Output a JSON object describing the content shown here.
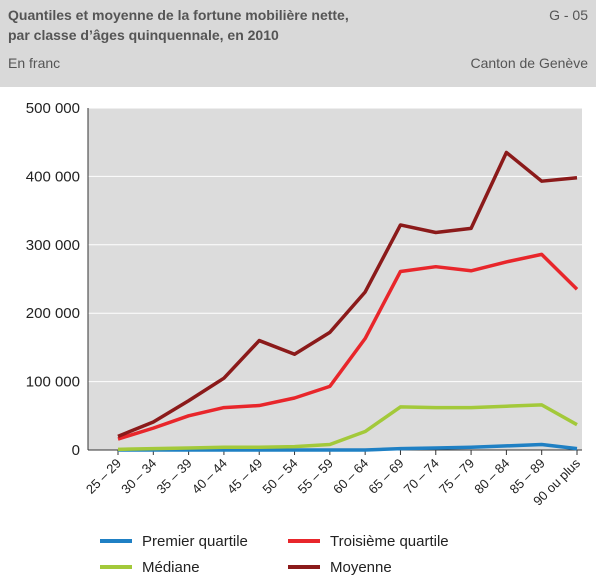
{
  "chart_data": {
    "type": "line",
    "title": [
      "Quantiles et moyenne de la fortune mobilière nette,",
      "par classe d’âges quinquennale, en 2010"
    ],
    "code": "G - 05",
    "subtitle": "En franc",
    "source": "Canton de Genève",
    "categories": [
      "25 – 29",
      "30 – 34",
      "35 – 39",
      "40 – 44",
      "45 – 49",
      "50 – 54",
      "55 – 59",
      "60 – 64",
      "65 – 69",
      "70 – 74",
      "75 – 79",
      "80 – 84",
      "85 – 89",
      "90 ou plus"
    ],
    "series": [
      {
        "name": "Premier quartile",
        "color": "#1f80c4",
        "values": [
          0,
          0,
          0,
          0,
          0,
          0,
          0,
          0,
          2000,
          3000,
          4000,
          6000,
          8000,
          2000
        ]
      },
      {
        "name": "Troisième quartile",
        "color": "#e8262b",
        "values": [
          16000,
          32000,
          50000,
          62000,
          65000,
          76000,
          93000,
          163000,
          261000,
          268000,
          262000,
          275000,
          286000,
          235000
        ]
      },
      {
        "name": "Médiane",
        "color": "#a3c93a",
        "values": [
          1000,
          2000,
          3000,
          4000,
          4000,
          5000,
          8000,
          27000,
          63000,
          62000,
          62000,
          64000,
          66000,
          37000
        ]
      },
      {
        "name": "Moyenne",
        "color": "#8b1a1a",
        "values": [
          20000,
          41000,
          72000,
          105000,
          160000,
          140000,
          172000,
          231000,
          329000,
          318000,
          324000,
          435000,
          393000,
          398000
        ]
      }
    ],
    "ylim": [
      0,
      500000
    ],
    "yticks": [
      0,
      {
        "value": 100000,
        "label": "100 000"
      },
      {
        "value": 200000,
        "label": "200 000"
      },
      {
        "value": 300000,
        "label": "300 000"
      },
      {
        "value": 400000,
        "label": "400 000"
      },
      {
        "value": 500000,
        "label": "500 000"
      }
    ],
    "grid": true
  }
}
